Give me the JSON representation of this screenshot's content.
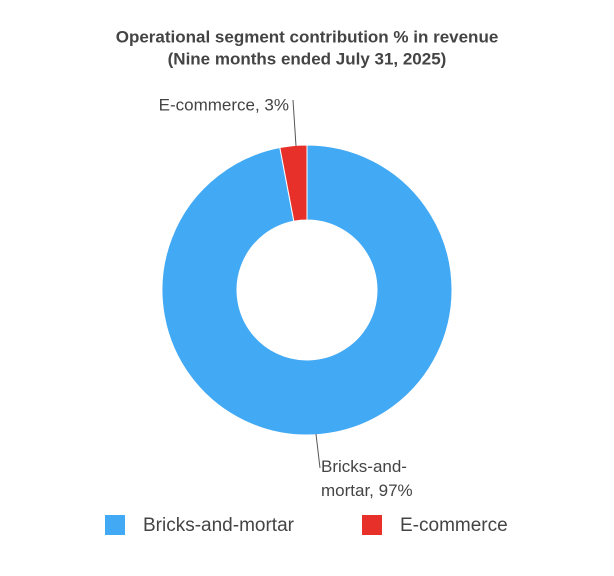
{
  "chart_data": {
    "type": "donut",
    "title": "Operational segment contribution % in revenue",
    "subtitle": "(Nine months ended July 31, 2025)",
    "categories": [
      "Bricks-and-mortar",
      "E-commerce"
    ],
    "values": [
      97,
      3
    ],
    "value_labels": [
      "Bricks-and-mortar, 97%",
      "E-commerce, 3%"
    ],
    "colors": [
      "#42a9f5",
      "#e8302a"
    ],
    "legend": "bottom"
  }
}
